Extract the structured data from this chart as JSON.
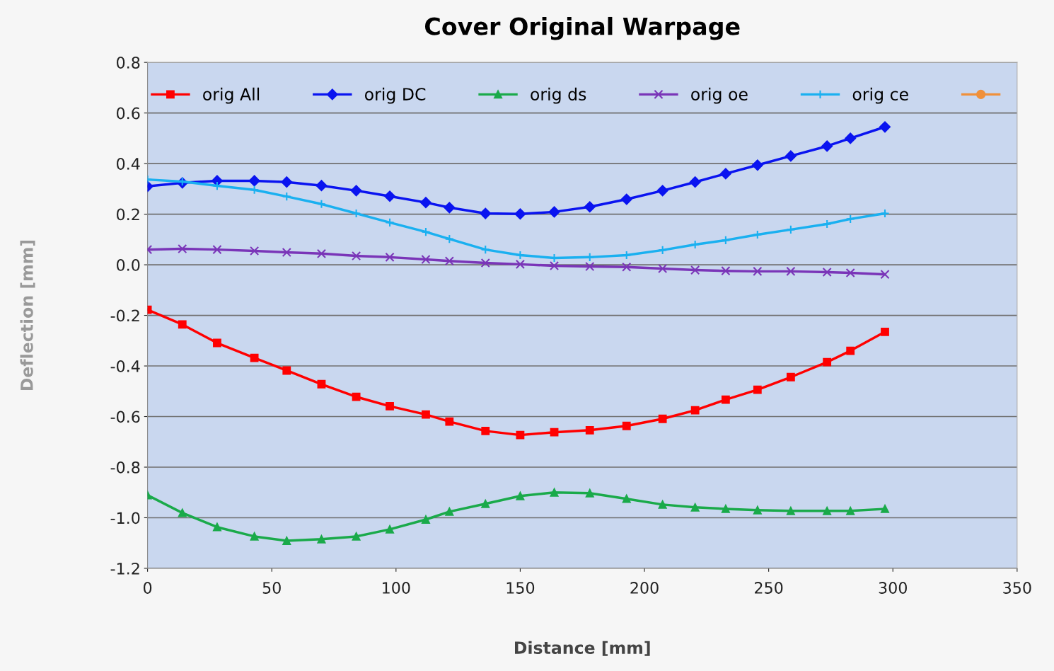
{
  "chart_data": {
    "type": "line",
    "title": "Cover Original Warpage",
    "xlabel": "Distance [mm]",
    "ylabel": "Deflection [mm]",
    "x": [
      0,
      14,
      28,
      43,
      56,
      70,
      84,
      97.5,
      112,
      121.5,
      136,
      150,
      163.7,
      178,
      192.8,
      207.3,
      220.4,
      232.7,
      245.5,
      258.9,
      273.5,
      282.9,
      296.8
    ],
    "series": [
      {
        "name": "orig All",
        "color": "#ff0000",
        "marker": "square",
        "values": [
          -0.178,
          -0.236,
          -0.309,
          -0.368,
          -0.418,
          -0.472,
          -0.522,
          -0.559,
          -0.592,
          -0.62,
          -0.657,
          -0.673,
          -0.662,
          -0.654,
          -0.637,
          -0.609,
          -0.575,
          -0.533,
          -0.494,
          -0.444,
          -0.385,
          -0.34,
          -0.265
        ]
      },
      {
        "name": "orig DC",
        "color": "#0a14f0",
        "marker": "diamond",
        "values": [
          0.31,
          0.324,
          0.332,
          0.332,
          0.327,
          0.313,
          0.293,
          0.271,
          0.246,
          0.226,
          0.203,
          0.201,
          0.209,
          0.229,
          0.259,
          0.293,
          0.327,
          0.36,
          0.394,
          0.43,
          0.469,
          0.5,
          0.545
        ]
      },
      {
        "name": "orig ds",
        "color": "#1aaa4a",
        "marker": "triangle",
        "values": [
          -0.911,
          -0.981,
          -1.037,
          -1.074,
          -1.091,
          -1.085,
          -1.074,
          -1.046,
          -1.007,
          -0.976,
          -0.945,
          -0.914,
          -0.9,
          -0.903,
          -0.925,
          -0.948,
          -0.959,
          -0.965,
          -0.97,
          -0.973,
          -0.973,
          -0.973,
          -0.965
        ]
      },
      {
        "name": "orig oe",
        "color": "#7a35b8",
        "marker": "cross",
        "values": [
          0.06,
          0.063,
          0.06,
          0.055,
          0.049,
          0.044,
          0.035,
          0.03,
          0.021,
          0.015,
          0.007,
          0.002,
          -0.004,
          -0.007,
          -0.009,
          -0.015,
          -0.021,
          -0.024,
          -0.026,
          -0.026,
          -0.029,
          -0.032,
          -0.038
        ]
      },
      {
        "name": "orig ce",
        "color": "#1ab0f0",
        "marker": "plus",
        "values": [
          0.337,
          0.329,
          0.312,
          0.296,
          0.27,
          0.24,
          0.203,
          0.167,
          0.13,
          0.102,
          0.06,
          0.038,
          0.027,
          0.03,
          0.038,
          0.058,
          0.08,
          0.097,
          0.119,
          0.139,
          0.161,
          0.181,
          0.203
        ]
      },
      {
        "color": "#f0903a",
        "marker": "circle",
        "values": [
          null,
          null,
          null,
          null,
          null,
          null,
          null,
          null,
          null,
          null,
          null,
          null,
          null,
          null,
          null,
          null,
          null,
          null,
          null,
          null,
          null,
          null,
          null
        ]
      }
    ],
    "xlim": [
      0,
      350
    ],
    "xticks": [
      0,
      50,
      100,
      150,
      200,
      250,
      300,
      350
    ],
    "ylim": [
      -1.2,
      0.8
    ],
    "yticks": [
      {
        "value": -1.2,
        "label": "-1.2"
      },
      {
        "value": -1.0,
        "label": "-1.0"
      },
      {
        "value": -0.8,
        "label": "-0.8"
      },
      {
        "value": -0.6,
        "label": "-0.6"
      },
      {
        "value": -0.4,
        "label": "-0.4"
      },
      {
        "value": -0.2,
        "label": "-0.2"
      },
      {
        "value": 0.0,
        "label": "0.0"
      },
      {
        "value": 0.2,
        "label": "0.2"
      },
      {
        "value": 0.4,
        "label": "0.4"
      },
      {
        "value": 0.6,
        "label": "0.6"
      },
      {
        "value": 0.8,
        "label": "0.8"
      }
    ],
    "grid": "y",
    "legend": "top"
  }
}
